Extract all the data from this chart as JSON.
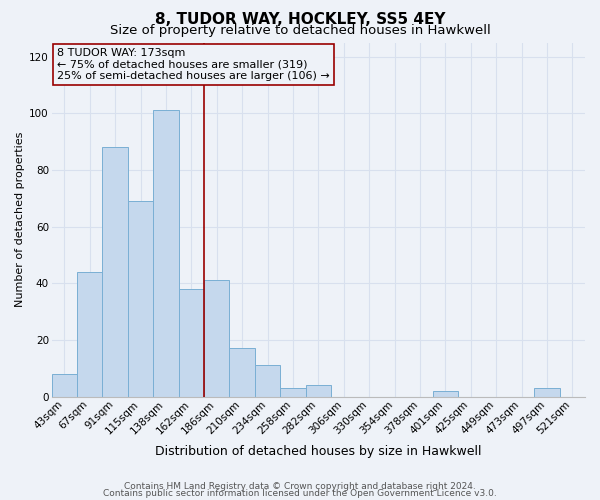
{
  "title": "8, TUDOR WAY, HOCKLEY, SS5 4EY",
  "subtitle": "Size of property relative to detached houses in Hawkwell",
  "xlabel": "Distribution of detached houses by size in Hawkwell",
  "ylabel": "Number of detached properties",
  "bar_labels": [
    "43sqm",
    "67sqm",
    "91sqm",
    "115sqm",
    "138sqm",
    "162sqm",
    "186sqm",
    "210sqm",
    "234sqm",
    "258sqm",
    "282sqm",
    "306sqm",
    "330sqm",
    "354sqm",
    "378sqm",
    "401sqm",
    "425sqm",
    "449sqm",
    "473sqm",
    "497sqm",
    "521sqm"
  ],
  "bar_values": [
    8,
    44,
    88,
    69,
    101,
    38,
    41,
    17,
    11,
    3,
    4,
    0,
    0,
    0,
    0,
    2,
    0,
    0,
    0,
    3,
    0
  ],
  "bar_color": "#c5d8ed",
  "bar_edge_color": "#7aafd4",
  "vline_x": 5.5,
  "vline_color": "#990000",
  "annotation_box_text": "8 TUDOR WAY: 173sqm\n← 75% of detached houses are smaller (319)\n25% of semi-detached houses are larger (106) →",
  "annotation_box_color": "#990000",
  "ylim": [
    0,
    125
  ],
  "yticks": [
    0,
    20,
    40,
    60,
    80,
    100,
    120
  ],
  "footer_line1": "Contains HM Land Registry data © Crown copyright and database right 2024.",
  "footer_line2": "Contains public sector information licensed under the Open Government Licence v3.0.",
  "bg_color": "#eef2f8",
  "grid_color": "#d8e0ee",
  "title_fontsize": 11,
  "subtitle_fontsize": 9.5,
  "xlabel_fontsize": 9,
  "ylabel_fontsize": 8,
  "tick_fontsize": 7.5,
  "footer_fontsize": 6.5,
  "ann_fontsize": 8
}
